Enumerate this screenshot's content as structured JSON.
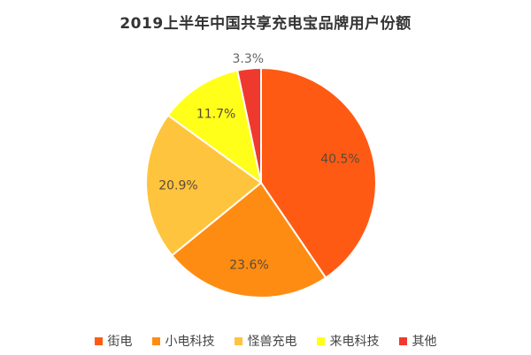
{
  "title": "2019上半年中国共享充电宝品牌用户份额",
  "chart_data": {
    "type": "pie",
    "title": "2019上半年中国共享充电宝品牌用户份额",
    "categories": [
      "街电",
      "小电科技",
      "怪兽充电",
      "来电科技",
      "其他"
    ],
    "values": [
      40.5,
      23.6,
      20.9,
      11.7,
      3.3
    ],
    "labels": [
      "40.5%",
      "23.6%",
      "20.9%",
      "11.7%",
      "3.3%"
    ],
    "colors": [
      "#FF5A14",
      "#FF8C12",
      "#FFC43D",
      "#FFFF1A",
      "#F0392E"
    ],
    "start_angle": "12 o'clock",
    "direction": "clockwise",
    "legend_position": "bottom"
  },
  "legend": [
    {
      "label": "街电",
      "color": "#FF5A14"
    },
    {
      "label": "小电科技",
      "color": "#FF8C12"
    },
    {
      "label": "怪兽充电",
      "color": "#FFC43D"
    },
    {
      "label": "来电科技",
      "color": "#FFFF1A"
    },
    {
      "label": "其他",
      "color": "#F0392E"
    }
  ]
}
